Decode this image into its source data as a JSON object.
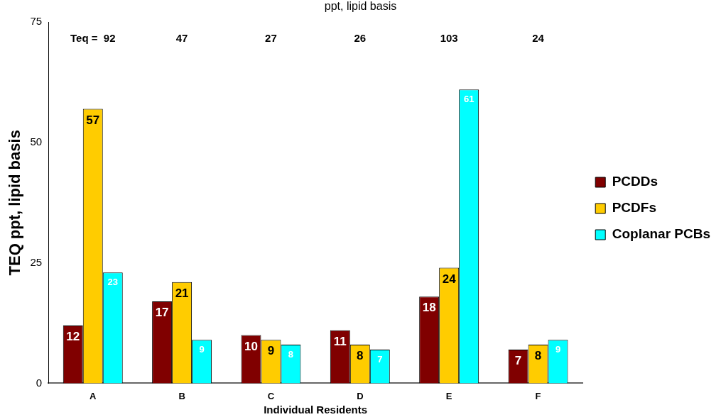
{
  "chart_data": {
    "type": "bar",
    "subtitle": "ppt, lipid basis",
    "xlabel": "Individual Residents",
    "ylabel": "TEQ ppt, lipid basis",
    "categories": [
      "A",
      "B",
      "C",
      "D",
      "E",
      "F"
    ],
    "series": [
      {
        "name": "PCDDs",
        "color": "#800000",
        "values": [
          12,
          17,
          10,
          11,
          18,
          7
        ]
      },
      {
        "name": "PCDFs",
        "color": "#ffcc00",
        "values": [
          57,
          21,
          9,
          8,
          24,
          8
        ]
      },
      {
        "name": "Coplanar PCBs",
        "color": "#00ffff",
        "values": [
          23,
          9,
          8,
          7,
          61,
          9
        ]
      }
    ],
    "ylim": [
      0,
      75
    ],
    "yticks": [
      0,
      25,
      50,
      75
    ],
    "grid": false,
    "legend": "right",
    "data_labels": true,
    "annotations": [
      "Teq =  92",
      "47",
      "27",
      "26",
      "103",
      "24"
    ]
  }
}
